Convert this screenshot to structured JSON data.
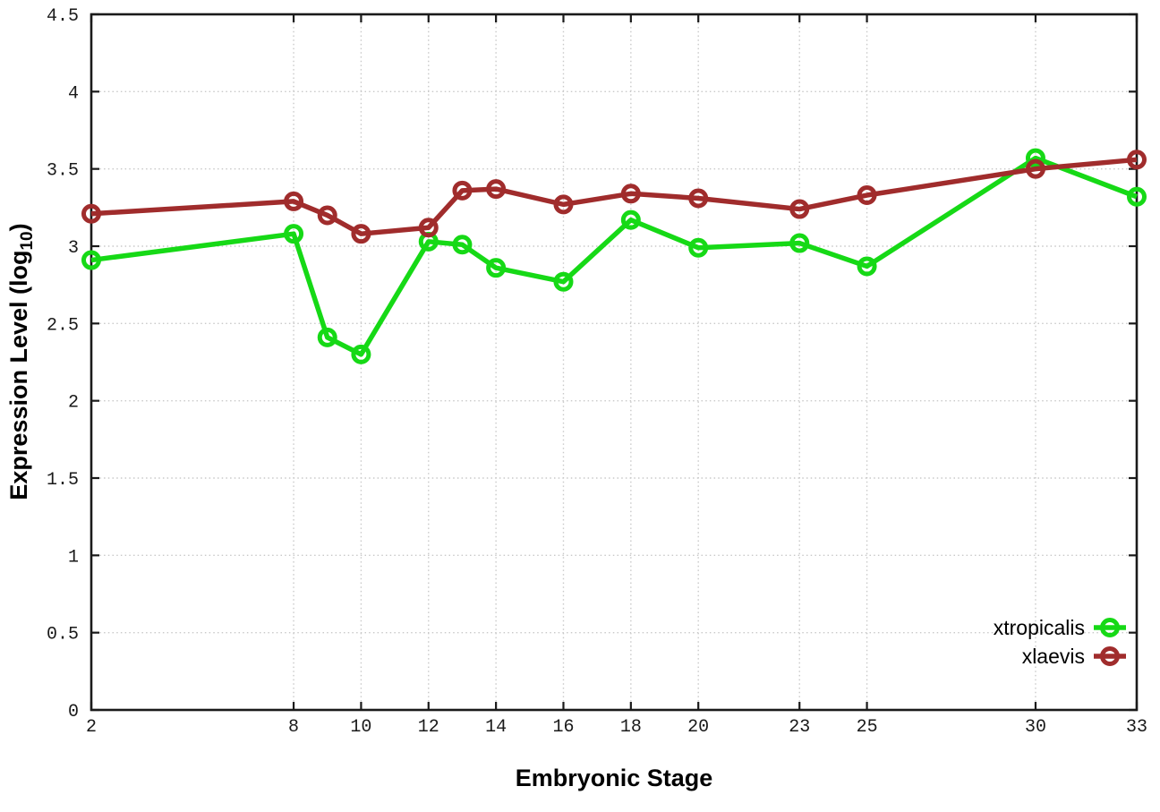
{
  "chart_data": {
    "type": "line",
    "title": "",
    "xlabel": "Embryonic Stage",
    "ylabel": "Expression Level (log10)",
    "ylabel_parts": {
      "pre": "Expression Level (log",
      "sub": "10",
      "post": ")"
    },
    "x": [
      2,
      8,
      9,
      10,
      12,
      13,
      14,
      16,
      18,
      20,
      23,
      25,
      30,
      33
    ],
    "series": [
      {
        "name": "xtropicalis",
        "color": "#16d916",
        "values": [
          2.91,
          3.08,
          2.41,
          2.3,
          3.03,
          3.01,
          2.86,
          2.77,
          3.17,
          2.99,
          3.02,
          2.87,
          3.57,
          3.32
        ]
      },
      {
        "name": "xlaevis",
        "color": "#a02c2c",
        "values": [
          3.21,
          3.29,
          3.2,
          3.08,
          3.12,
          3.36,
          3.37,
          3.27,
          3.34,
          3.31,
          3.24,
          3.33,
          3.5,
          3.56
        ]
      }
    ],
    "xticks": [
      2,
      8,
      10,
      12,
      14,
      16,
      18,
      20,
      23,
      25,
      30,
      33
    ],
    "yticks": [
      0,
      0.5,
      1,
      1.5,
      2,
      2.5,
      3,
      3.5,
      4,
      4.5
    ],
    "xlim": [
      2,
      33
    ],
    "ylim": [
      0,
      4.5
    ],
    "grid": true,
    "legend_position": "bottom-right",
    "colors": {
      "axis": "#1a1a1a",
      "grid": "#c9c9c9",
      "background": "#ffffff",
      "text": "#1a1a1a"
    }
  }
}
